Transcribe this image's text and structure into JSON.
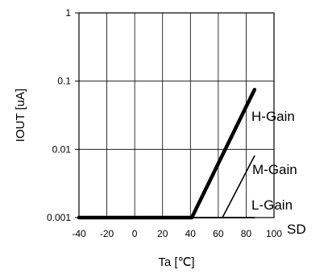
{
  "chart_data": {
    "type": "line",
    "title": "",
    "xlabel": "Ta [℃]",
    "ylabel": "IOUT [uA]",
    "xlim": [
      -40,
      100
    ],
    "ylim": [
      0.001,
      1
    ],
    "yscale": "log",
    "grid": true,
    "x_ticks": [
      "-40",
      "-20",
      "0",
      "20",
      "40",
      "60",
      "80",
      "100"
    ],
    "y_ticks": [
      "0.001",
      "0.01",
      "0.1",
      "1"
    ],
    "series": [
      {
        "name": "H-Gain",
        "x": [
          -40,
          41,
          86
        ],
        "y": [
          0.001,
          0.001,
          0.075
        ],
        "width": "thick"
      },
      {
        "name": "M-Gain",
        "x": [
          -40,
          63,
          86
        ],
        "y": [
          0.001,
          0.001,
          0.008
        ],
        "width": "thin"
      },
      {
        "name": "L-Gain",
        "x": [
          -40,
          86
        ],
        "y": [
          0.001,
          0.001
        ],
        "width": "thin"
      },
      {
        "name": "SD",
        "x": [
          -40,
          86
        ],
        "y": [
          0.001,
          0.001
        ],
        "width": "thin"
      }
    ],
    "colors": {
      "line": "#000000",
      "grid": "#000000"
    }
  }
}
